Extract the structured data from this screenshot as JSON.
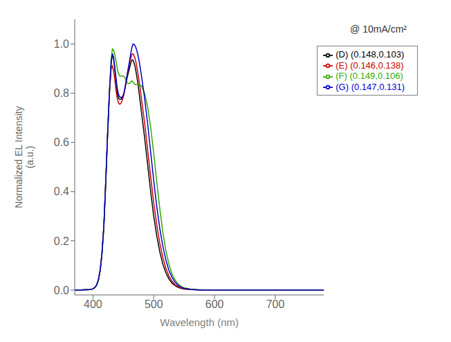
{
  "chart_data": {
    "type": "line",
    "xlabel": "Wavelength (nm)",
    "ylabel": "Normalized EL Intensity\n(a.u.)",
    "annotation": "@ 10mA/cm²",
    "xlim": [
      370,
      780
    ],
    "ylim": [
      -0.02,
      1.1
    ],
    "xticks": [
      400,
      500,
      600,
      700
    ],
    "yticks": [
      {
        "value": 0.0,
        "label": "0.0"
      },
      0.2,
      0.4,
      0.6,
      0.8,
      {
        "value": 1.0,
        "label": "1.0"
      }
    ],
    "grid": false,
    "legend": "upper right",
    "x": [
      370,
      375,
      380,
      385,
      390,
      395,
      398,
      400,
      403,
      406,
      409,
      412,
      415,
      418,
      421,
      424,
      427,
      430,
      432,
      434,
      436,
      438,
      440,
      442,
      444,
      446,
      448,
      450,
      452,
      454,
      456,
      458,
      460,
      462,
      464,
      466,
      468,
      470,
      472,
      474,
      476,
      478,
      480,
      485,
      490,
      495,
      500,
      505,
      510,
      515,
      520,
      525,
      530,
      535,
      540,
      545,
      550,
      560,
      570,
      580,
      590,
      600,
      620,
      640,
      660,
      680,
      700,
      720,
      740,
      760,
      780
    ],
    "series": [
      {
        "name": "(D) (0.148,0.103)",
        "color": "#000000",
        "values": [
          0.0,
          0.0,
          0.0,
          0.001,
          0.001,
          0.002,
          0.003,
          0.005,
          0.01,
          0.02,
          0.04,
          0.08,
          0.15,
          0.26,
          0.43,
          0.62,
          0.79,
          0.92,
          0.96,
          0.94,
          0.895,
          0.85,
          0.8,
          0.78,
          0.775,
          0.775,
          0.78,
          0.79,
          0.81,
          0.835,
          0.86,
          0.88,
          0.9,
          0.92,
          0.935,
          0.935,
          0.92,
          0.9,
          0.87,
          0.84,
          0.8,
          0.76,
          0.72,
          0.62,
          0.51,
          0.4,
          0.3,
          0.22,
          0.155,
          0.105,
          0.07,
          0.045,
          0.028,
          0.018,
          0.011,
          0.007,
          0.004,
          0.002,
          0.001,
          0.0,
          0.0,
          0.0,
          0.0,
          0.0,
          0.0,
          0.0,
          0.0,
          0.0,
          0.0,
          0.0,
          0.0
        ]
      },
      {
        "name": "(E) (0.146,0.138)",
        "color": "#cc0000",
        "values": [
          0.0,
          0.0,
          0.0,
          0.001,
          0.001,
          0.002,
          0.003,
          0.005,
          0.01,
          0.02,
          0.042,
          0.082,
          0.155,
          0.265,
          0.44,
          0.63,
          0.8,
          0.9,
          0.91,
          0.89,
          0.855,
          0.81,
          0.78,
          0.76,
          0.755,
          0.758,
          0.77,
          0.785,
          0.81,
          0.84,
          0.87,
          0.895,
          0.92,
          0.94,
          0.958,
          0.96,
          0.95,
          0.935,
          0.91,
          0.88,
          0.85,
          0.815,
          0.775,
          0.68,
          0.57,
          0.46,
          0.355,
          0.265,
          0.19,
          0.132,
          0.088,
          0.057,
          0.036,
          0.022,
          0.014,
          0.008,
          0.005,
          0.002,
          0.001,
          0.0,
          0.0,
          0.0,
          0.0,
          0.0,
          0.0,
          0.0,
          0.0,
          0.0,
          0.0,
          0.0,
          0.0
        ]
      },
      {
        "name": "(F) (0.149,0.106)",
        "color": "#33aa00",
        "values": [
          0.0,
          0.0,
          0.0,
          0.001,
          0.001,
          0.002,
          0.003,
          0.005,
          0.01,
          0.02,
          0.04,
          0.08,
          0.152,
          0.262,
          0.435,
          0.625,
          0.8,
          0.94,
          0.98,
          0.975,
          0.955,
          0.93,
          0.9,
          0.88,
          0.87,
          0.87,
          0.87,
          0.87,
          0.865,
          0.855,
          0.845,
          0.838,
          0.84,
          0.845,
          0.85,
          0.845,
          0.838,
          0.835,
          0.835,
          0.835,
          0.835,
          0.832,
          0.83,
          0.8,
          0.745,
          0.66,
          0.555,
          0.44,
          0.33,
          0.235,
          0.16,
          0.105,
          0.066,
          0.041,
          0.025,
          0.015,
          0.009,
          0.004,
          0.002,
          0.001,
          0.0,
          0.0,
          0.0,
          0.0,
          0.0,
          0.0,
          0.0,
          0.0,
          0.0,
          0.0,
          0.0
        ]
      },
      {
        "name": "(G) (0.147,0.131)",
        "color": "#0000cc",
        "values": [
          0.0,
          0.0,
          0.0,
          0.001,
          0.001,
          0.002,
          0.003,
          0.005,
          0.01,
          0.02,
          0.042,
          0.082,
          0.155,
          0.262,
          0.438,
          0.628,
          0.8,
          0.93,
          0.96,
          0.945,
          0.905,
          0.86,
          0.82,
          0.796,
          0.785,
          0.782,
          0.785,
          0.793,
          0.812,
          0.84,
          0.87,
          0.9,
          0.928,
          0.958,
          0.985,
          1.0,
          0.998,
          0.99,
          0.975,
          0.955,
          0.93,
          0.9,
          0.868,
          0.78,
          0.675,
          0.56,
          0.445,
          0.34,
          0.25,
          0.178,
          0.122,
          0.08,
          0.052,
          0.032,
          0.02,
          0.012,
          0.007,
          0.003,
          0.001,
          0.0,
          0.0,
          0.0,
          0.0,
          0.0,
          0.0,
          0.0,
          0.0,
          0.0,
          0.0,
          0.0,
          0.0
        ]
      }
    ]
  }
}
